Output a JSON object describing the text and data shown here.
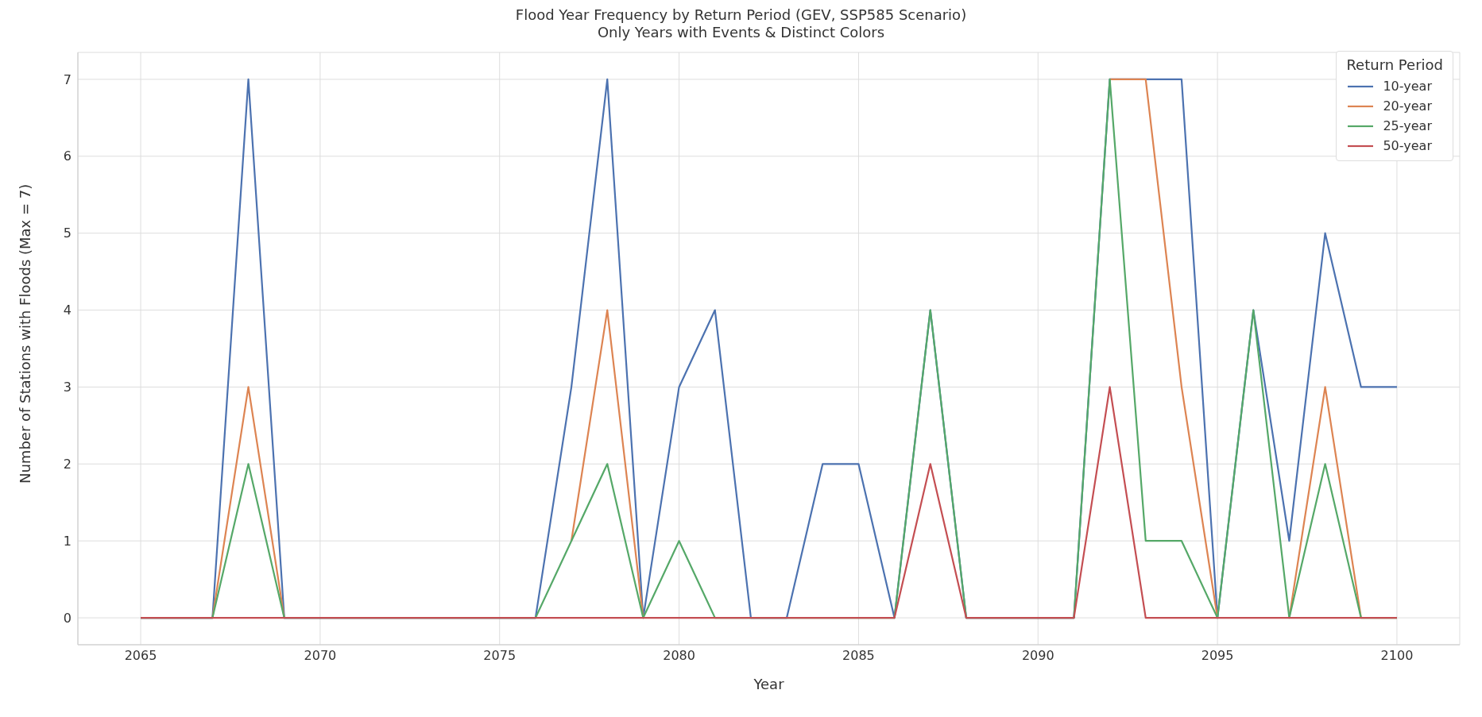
{
  "chart_data": {
    "type": "line",
    "title": "Flood Year Frequency by Return Period (GEV, SSP585 Scenario)",
    "subtitle": "Only Years with Events & Distinct Colors",
    "xlabel": "Year",
    "ylabel": "Number of Stations with Floods (Max = 7)",
    "legend_title": "Return Period",
    "x": [
      2065,
      2066,
      2067,
      2068,
      2069,
      2070,
      2071,
      2072,
      2073,
      2074,
      2075,
      2076,
      2077,
      2078,
      2079,
      2080,
      2081,
      2082,
      2083,
      2084,
      2085,
      2086,
      2087,
      2088,
      2089,
      2090,
      2091,
      2092,
      2093,
      2094,
      2095,
      2096,
      2097,
      2098,
      2099,
      2100
    ],
    "series": [
      {
        "name": "10-year",
        "color": "#4c72b0",
        "values": [
          0,
          0,
          0,
          7,
          0,
          0,
          0,
          0,
          0,
          0,
          0,
          0,
          3,
          7,
          0,
          3,
          4,
          0,
          0,
          2,
          2,
          0,
          4,
          0,
          0,
          0,
          0,
          7,
          7,
          7,
          0,
          4,
          1,
          5,
          3,
          3
        ]
      },
      {
        "name": "20-year",
        "color": "#dd8452",
        "values": [
          null,
          null,
          0,
          3,
          0,
          null,
          null,
          null,
          null,
          null,
          null,
          null,
          1,
          4,
          0,
          null,
          null,
          null,
          null,
          null,
          null,
          null,
          null,
          null,
          null,
          null,
          null,
          7,
          7,
          3,
          0,
          null,
          0,
          3,
          0,
          null
        ]
      },
      {
        "name": "25-year",
        "color": "#55a868",
        "values": [
          0,
          0,
          0,
          2,
          0,
          0,
          0,
          0,
          0,
          0,
          0,
          0,
          1,
          2,
          0,
          1,
          0,
          0,
          0,
          0,
          0,
          0,
          4,
          0,
          0,
          0,
          0,
          7,
          1,
          1,
          0,
          4,
          0,
          2,
          0,
          0
        ]
      },
      {
        "name": "50-year",
        "color": "#c44e52",
        "values": [
          0,
          0,
          0,
          0,
          0,
          0,
          0,
          0,
          0,
          0,
          0,
          0,
          0,
          0,
          0,
          0,
          0,
          0,
          0,
          0,
          0,
          0,
          2,
          0,
          0,
          0,
          0,
          3,
          0,
          0,
          0,
          0,
          0,
          0,
          0,
          0
        ]
      }
    ],
    "xlim": [
      2063.25,
      2101.75
    ],
    "xticks": [
      2065,
      2070,
      2075,
      2080,
      2085,
      2090,
      2095,
      2100
    ],
    "ylim": [
      -0.35,
      7.35
    ],
    "yticks": [
      0,
      1,
      2,
      3,
      4,
      5,
      6,
      7
    ],
    "grid": true,
    "legend": "top right",
    "marker": "none",
    "line_style": "solid"
  }
}
